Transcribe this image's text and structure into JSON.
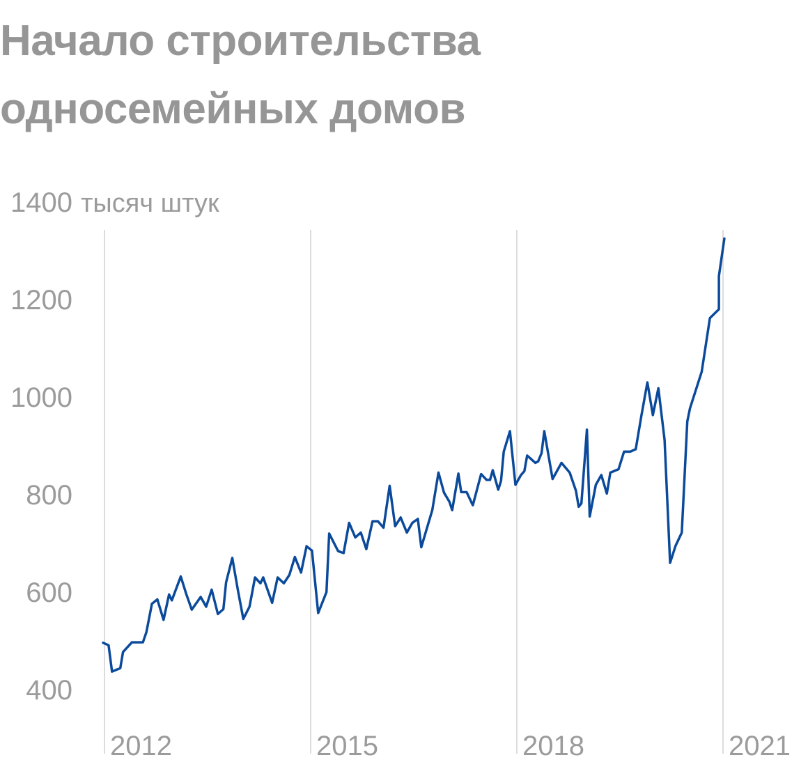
{
  "chart_data": {
    "type": "line",
    "title_lines": [
      "Начало строительства",
      "односемейных домов"
    ],
    "ylabel": "тысяч штук",
    "ylim": [
      300,
      1400
    ],
    "y_ticks": [
      {
        "value": 1400,
        "label": "1400"
      },
      {
        "value": 1200,
        "label": "1200"
      },
      {
        "value": 1000,
        "label": "1000"
      },
      {
        "value": 800,
        "label": "800"
      },
      {
        "value": 600,
        "label": "600"
      },
      {
        "value": 400,
        "label": "400"
      }
    ],
    "x_ticks": [
      {
        "value": 2012.0,
        "label": "2012"
      },
      {
        "value": 2015.0,
        "label": "2015"
      },
      {
        "value": 2018.0,
        "label": "2018"
      },
      {
        "value": 2021.0,
        "label": "2021"
      }
    ],
    "xlim": [
      2012.0,
      2021.0
    ],
    "grid": "vertical-at-year-ticks",
    "line_color": "#0b4a9b",
    "series": [
      {
        "values": [
          [
            2012.0,
            496
          ],
          [
            2012.08,
            491
          ],
          [
            2012.13,
            437
          ],
          [
            2012.25,
            444
          ],
          [
            2012.29,
            477
          ],
          [
            2012.42,
            497
          ],
          [
            2012.58,
            497
          ],
          [
            2012.63,
            518
          ],
          [
            2012.71,
            576
          ],
          [
            2012.79,
            585
          ],
          [
            2012.88,
            543
          ],
          [
            2012.96,
            595
          ],
          [
            2013.0,
            583
          ],
          [
            2013.13,
            632
          ],
          [
            2013.21,
            596
          ],
          [
            2013.29,
            564
          ],
          [
            2013.42,
            590
          ],
          [
            2013.5,
            570
          ],
          [
            2013.58,
            605
          ],
          [
            2013.67,
            555
          ],
          [
            2013.75,
            565
          ],
          [
            2013.79,
            620
          ],
          [
            2013.88,
            670
          ],
          [
            2013.96,
            605
          ],
          [
            2014.04,
            545
          ],
          [
            2014.13,
            570
          ],
          [
            2014.21,
            630
          ],
          [
            2014.29,
            618
          ],
          [
            2014.33,
            630
          ],
          [
            2014.46,
            578
          ],
          [
            2014.54,
            630
          ],
          [
            2014.63,
            618
          ],
          [
            2014.71,
            635
          ],
          [
            2014.79,
            672
          ],
          [
            2014.88,
            640
          ],
          [
            2014.96,
            694
          ],
          [
            2015.04,
            685
          ],
          [
            2015.13,
            557
          ],
          [
            2015.25,
            600
          ],
          [
            2015.29,
            720
          ],
          [
            2015.42,
            684
          ],
          [
            2015.5,
            680
          ],
          [
            2015.58,
            742
          ],
          [
            2015.67,
            712
          ],
          [
            2015.75,
            722
          ],
          [
            2015.83,
            688
          ],
          [
            2015.92,
            745
          ],
          [
            2016.0,
            745
          ],
          [
            2016.08,
            732
          ],
          [
            2016.17,
            818
          ],
          [
            2016.25,
            735
          ],
          [
            2016.33,
            753
          ],
          [
            2016.42,
            722
          ],
          [
            2016.5,
            742
          ],
          [
            2016.58,
            750
          ],
          [
            2016.63,
            692
          ],
          [
            2016.79,
            768
          ],
          [
            2016.88,
            845
          ],
          [
            2016.96,
            804
          ],
          [
            2017.04,
            785
          ],
          [
            2017.08,
            768
          ],
          [
            2017.17,
            843
          ],
          [
            2017.21,
            805
          ],
          [
            2017.29,
            805
          ],
          [
            2017.38,
            778
          ],
          [
            2017.5,
            842
          ],
          [
            2017.58,
            830
          ],
          [
            2017.63,
            830
          ],
          [
            2017.67,
            850
          ],
          [
            2017.75,
            810
          ],
          [
            2017.79,
            828
          ],
          [
            2017.83,
            888
          ],
          [
            2017.92,
            930
          ],
          [
            2018.0,
            820
          ],
          [
            2018.08,
            840
          ],
          [
            2018.13,
            848
          ],
          [
            2018.17,
            880
          ],
          [
            2018.29,
            865
          ],
          [
            2018.33,
            868
          ],
          [
            2018.38,
            885
          ],
          [
            2018.42,
            930
          ],
          [
            2018.54,
            832
          ],
          [
            2018.67,
            865
          ],
          [
            2018.79,
            845
          ],
          [
            2018.88,
            808
          ],
          [
            2018.92,
            775
          ],
          [
            2018.96,
            782
          ],
          [
            2019.04,
            933
          ],
          [
            2019.08,
            755
          ],
          [
            2019.17,
            820
          ],
          [
            2019.25,
            840
          ],
          [
            2019.33,
            802
          ],
          [
            2019.38,
            845
          ],
          [
            2019.5,
            852
          ],
          [
            2019.58,
            888
          ],
          [
            2019.67,
            888
          ],
          [
            2019.75,
            893
          ],
          [
            2019.83,
            960
          ],
          [
            2019.92,
            1030
          ],
          [
            2020.0,
            963
          ],
          [
            2020.08,
            1018
          ],
          [
            2020.17,
            912
          ],
          [
            2020.25,
            660
          ],
          [
            2020.33,
            695
          ],
          [
            2020.42,
            722
          ],
          [
            2020.5,
            950
          ],
          [
            2020.54,
            977
          ],
          [
            2020.71,
            1052
          ],
          [
            2020.83,
            1162
          ],
          [
            2020.96,
            1180
          ],
          [
            2020.96,
            1248
          ],
          [
            2021.04,
            1325
          ]
        ]
      }
    ]
  }
}
